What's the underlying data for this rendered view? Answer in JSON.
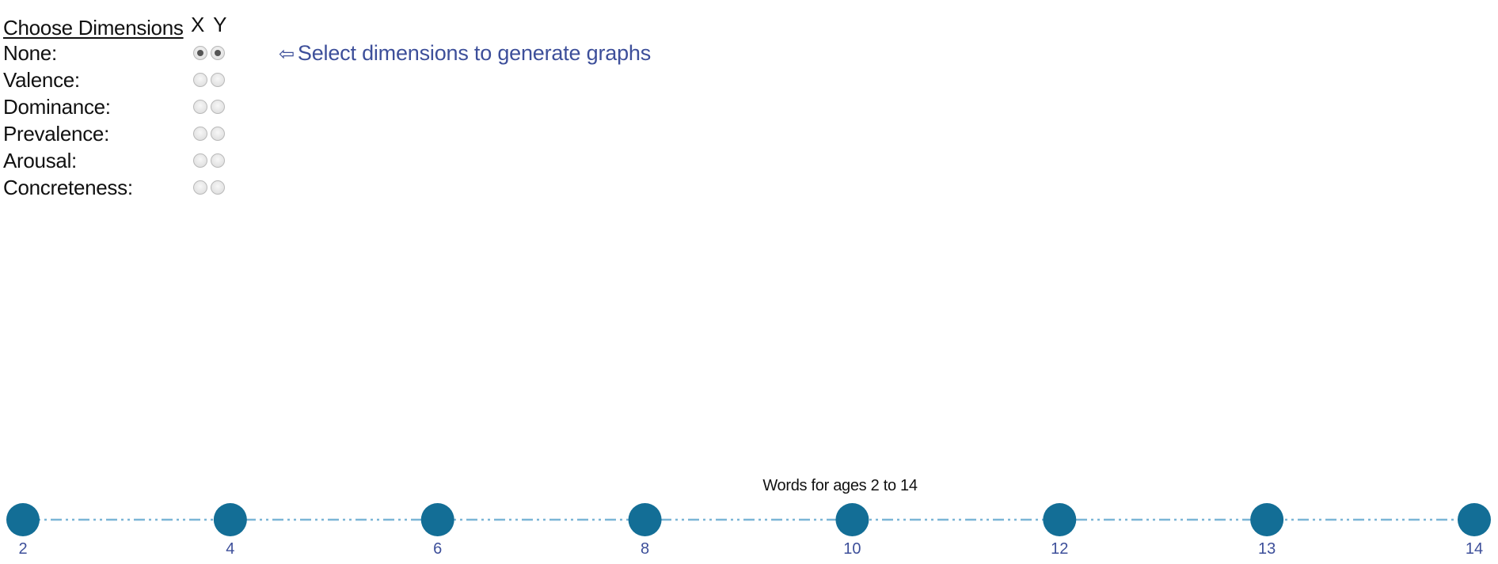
{
  "chooser": {
    "title": "Choose Dimensions",
    "axis_heads": "X Y",
    "dimensions": [
      {
        "label": "None:",
        "x_checked": true,
        "y_checked": true
      },
      {
        "label": "Valence:",
        "x_checked": false,
        "y_checked": false
      },
      {
        "label": "Dominance:",
        "x_checked": false,
        "y_checked": false
      },
      {
        "label": "Prevalence:",
        "x_checked": false,
        "y_checked": false
      },
      {
        "label": "Arousal:",
        "x_checked": false,
        "y_checked": false
      },
      {
        "label": "Concreteness:",
        "x_checked": false,
        "y_checked": false
      }
    ]
  },
  "hint": {
    "arrow": "⇦",
    "text": "Select dimensions to generate graphs"
  },
  "timeline": {
    "title": "Words for ages 2 to 14",
    "ages": [
      "2",
      "4",
      "6",
      "8",
      "10",
      "12",
      "13",
      "14"
    ],
    "node_color": "#136e96",
    "line_color": "#7bb6d6",
    "label_color": "#3d4f9a"
  }
}
